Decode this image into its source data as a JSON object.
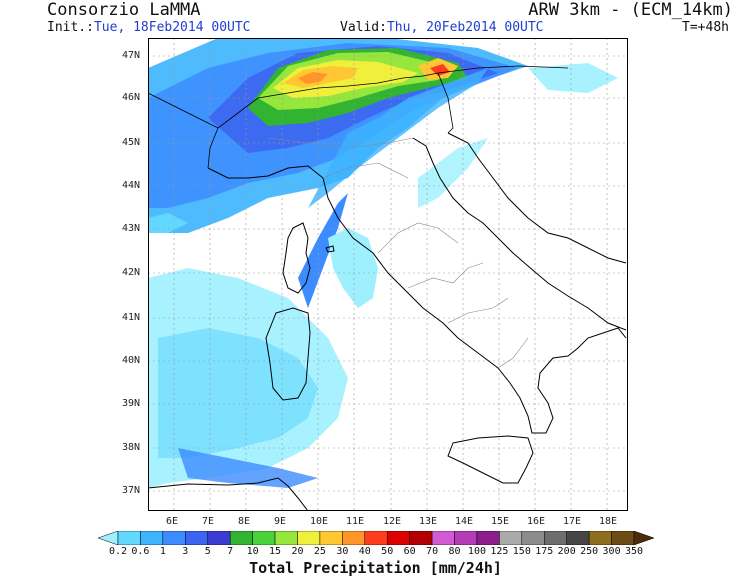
{
  "header": {
    "source": "Consorzio LaMMA",
    "model": "ARW 3km  -  (ECM_14km)",
    "init_label": "Init.:",
    "init_value": "Tue, 18Feb2014 00UTC",
    "valid_label": "Valid:",
    "valid_value": "Thu, 20Feb2014 00UTC",
    "forecast_step": "T=+48h"
  },
  "axes": {
    "lat_labels": [
      "47N",
      "46N",
      "45N",
      "44N",
      "43N",
      "42N",
      "41N",
      "40N",
      "39N",
      "38N",
      "37N"
    ],
    "lon_labels": [
      "6E",
      "7E",
      "8E",
      "9E",
      "10E",
      "11E",
      "12E",
      "13E",
      "14E",
      "15E",
      "16E",
      "17E",
      "18E"
    ]
  },
  "colorbar": {
    "title": "Total Precipitation [mm/24h]",
    "levels": [
      "0.2",
      "0.6",
      "1",
      "3",
      "5",
      "7",
      "10",
      "15",
      "20",
      "25",
      "30",
      "40",
      "50",
      "60",
      "70",
      "80",
      "100",
      "125",
      "150",
      "175",
      "200",
      "250",
      "300",
      "350"
    ],
    "colors": [
      "#9ef0ff",
      "#62d8ff",
      "#3cb4ff",
      "#3c8cff",
      "#3c64f0",
      "#3c3cd2",
      "#32b432",
      "#4ad23c",
      "#96e63c",
      "#f0f03c",
      "#ffc832",
      "#ff9628",
      "#ff3c1e",
      "#dc0000",
      "#b40000",
      "#d25ad2",
      "#b43cb4",
      "#8c1e8c",
      "#aaaaaa",
      "#8c8c8c",
      "#6e6e6e",
      "#464646",
      "#8c6e1e",
      "#6e4b14",
      "#4b2d0a"
    ]
  }
}
